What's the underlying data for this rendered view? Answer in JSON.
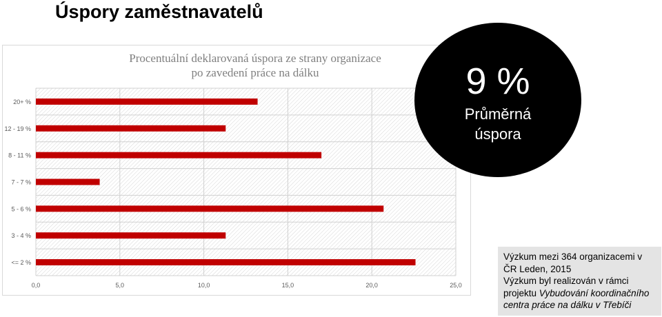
{
  "slide": {
    "title": "Úspory zaměstnavatelů"
  },
  "chart_data": {
    "type": "bar",
    "orientation": "horizontal",
    "title": "Procentuální deklarovaná úspora ze strany organizace po zavedení práce na dálku",
    "title_lines": [
      "Procentuální deklarovaná úspora ze strany organizace",
      "po zavedení práce na dálku"
    ],
    "categories": [
      "20+ %",
      "12 - 19 %",
      "8 - 11 %",
      "7 - 7 %",
      "5 - 6 %",
      "3 - 4 %",
      "<= 2 %"
    ],
    "values": [
      13.2,
      11.3,
      17.0,
      3.8,
      20.7,
      11.3,
      22.6
    ],
    "xlim": [
      0,
      25
    ],
    "xticks": [
      "0,0",
      "5,0",
      "10,0",
      "15,0",
      "20,0",
      "25,0"
    ],
    "xlabel": "",
    "ylabel": "",
    "grid": true,
    "legend": "none",
    "bar_color": "#c00000"
  },
  "badge": {
    "value": "9 %",
    "label_line1": "Průměrná",
    "label_line2": "úspora"
  },
  "note": {
    "line1": "Výzkum mezi 364 organizacemi v",
    "line2": "ČR Leden, 2015",
    "line3": "Výzkum byl realizován v rámci",
    "line4_prefix": "projektu ",
    "line4_italic": "Vybudování koordinačního",
    "line5_italic": "centra práce na dálku v Třebíči"
  }
}
